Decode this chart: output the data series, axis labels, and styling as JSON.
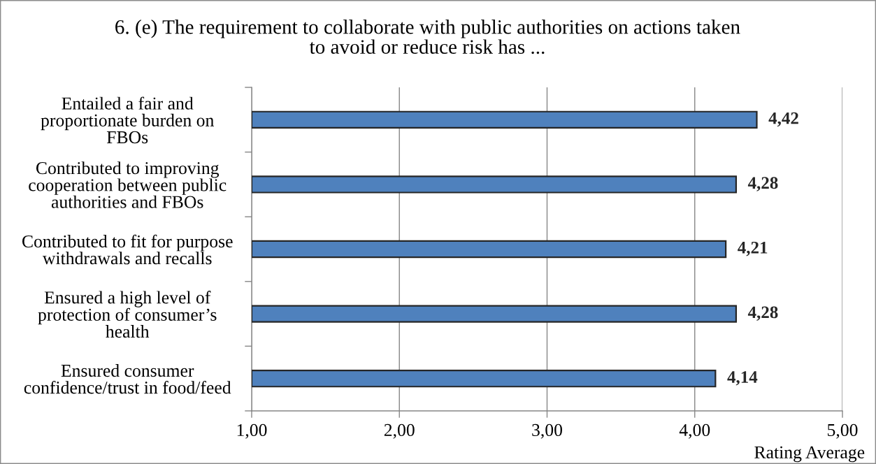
{
  "chart_data": {
    "type": "bar",
    "orientation": "horizontal",
    "title": "6. (e) The requirement to collaborate with public authorities on actions taken\nto avoid or reduce risk has ...",
    "categories": [
      "Entailed a fair and\nproportionate burden on\nFBOs",
      "Contributed to improving\ncooperation between public\nauthorities and FBOs",
      "Contributed to fit for purpose\nwithdrawals and recalls",
      "Ensured a high level of\nprotection of consumer’s\nhealth",
      "Ensured consumer\nconfidence/trust in food/feed"
    ],
    "values": [
      4.42,
      4.28,
      4.21,
      4.28,
      4.14
    ],
    "value_labels": [
      "4,42",
      "4,28",
      "4,21",
      "4,28",
      "4,14"
    ],
    "color": "#4f81bd",
    "xlim": [
      1,
      5
    ],
    "xticks": [
      {
        "value": 1,
        "label": "1,00"
      },
      {
        "value": 2,
        "label": "2,00"
      },
      {
        "value": 3,
        "label": "3,00"
      },
      {
        "value": 4,
        "label": "4,00"
      },
      {
        "value": 5,
        "label": "5,00"
      }
    ],
    "xlabel": "Rating Average",
    "grid": "x"
  }
}
